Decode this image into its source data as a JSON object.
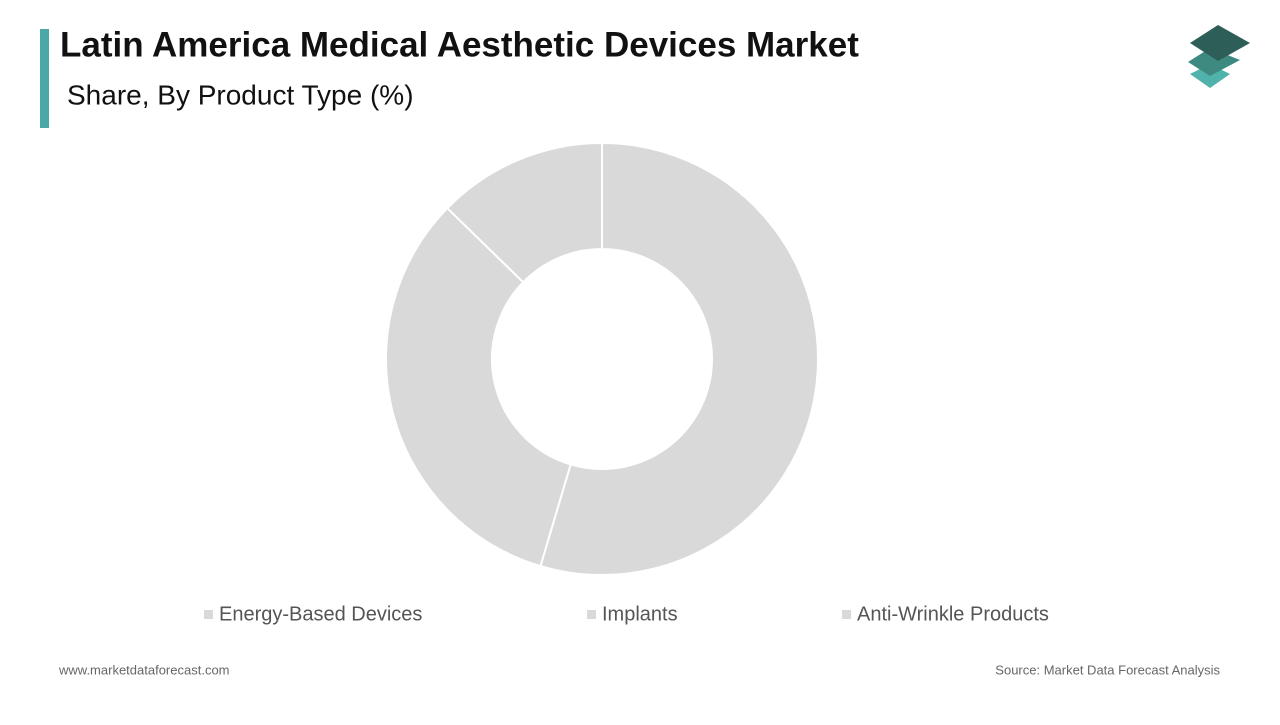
{
  "chart_data": {
    "type": "donut",
    "title": "Latin America Medical Aesthetic Devices Market",
    "subtitle": "Share, By Product Type (%)",
    "categories": [
      "Energy-Based Devices",
      "Implants",
      "Anti-Wrinkle Products"
    ],
    "values": [
      54.6,
      32.7,
      12.7
    ],
    "colors": [
      "#d9d9d9",
      "#d9d9d9",
      "#d9d9d9"
    ]
  },
  "footer": {
    "website": "www.marketdataforecast.com",
    "source": "Source: Market Data Forecast Analysis"
  }
}
